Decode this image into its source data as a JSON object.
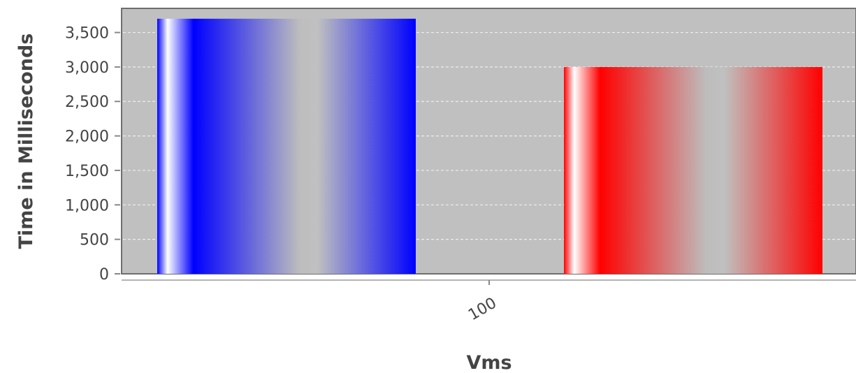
{
  "chart_data": {
    "type": "bar",
    "title": "",
    "xlabel": "Vms",
    "ylabel": "Time in Milliseconds",
    "categories": [
      "100"
    ],
    "series": [
      {
        "values": [
          3700
        ],
        "color": "#0000ff"
      },
      {
        "values": [
          3000
        ],
        "color": "#ff0000"
      }
    ],
    "ylim": [
      0,
      3850
    ],
    "yticks": [
      0,
      500,
      1000,
      1500,
      2000,
      2500,
      3000,
      3500
    ],
    "ytick_labels": [
      "0",
      "500",
      "1,000",
      "1,500",
      "2,000",
      "2,500",
      "3,000",
      "3,500"
    ],
    "grid": true,
    "grid_style": "dashed",
    "plot_background": "#c0c0c0",
    "legend": "none"
  }
}
